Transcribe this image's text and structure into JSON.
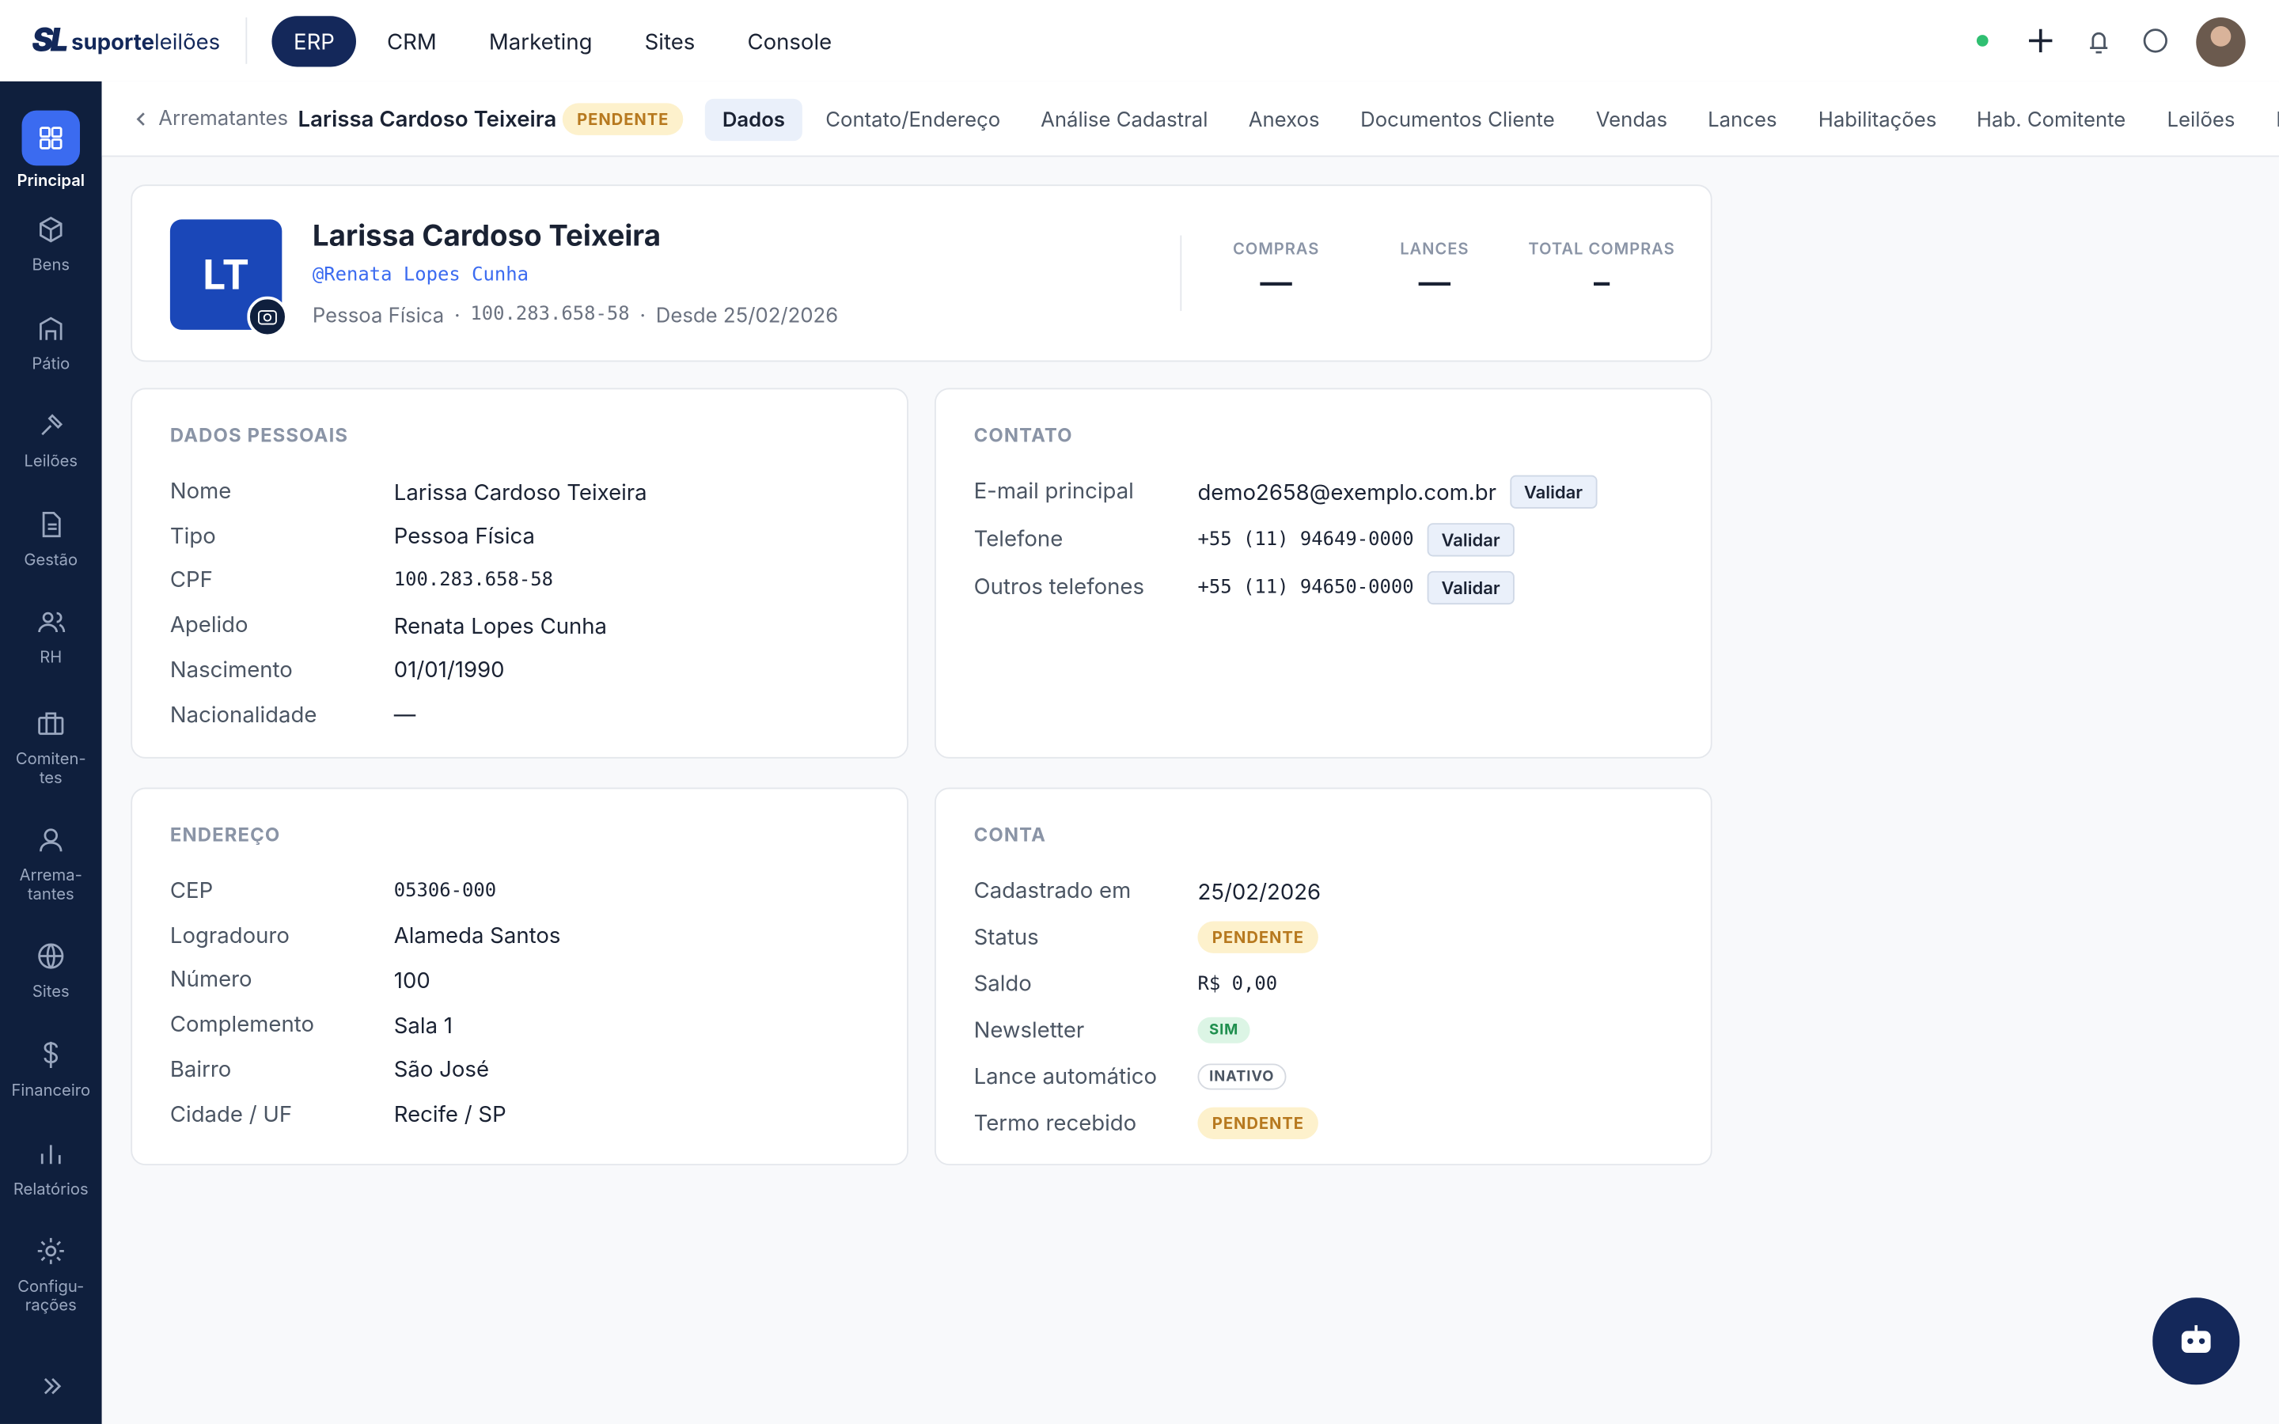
{
  "brand": {
    "mark": "SL",
    "name_bold": "suporte",
    "name_light": "leilões"
  },
  "topnav": {
    "items": [
      "ERP",
      "CRM",
      "Marketing",
      "Sites",
      "Console"
    ],
    "active": 0
  },
  "sidebar": {
    "items": [
      "Principal",
      "Bens",
      "Pátio",
      "Leilões",
      "Gestão",
      "RH",
      "Comiten-\ntes",
      "Arrema-\ntantes",
      "Sites",
      "Financeiro",
      "Relatórios",
      "Configu-\nrações"
    ],
    "active": 0
  },
  "breadcrumb": {
    "parent": "Arrematantes",
    "current": "Larissa Cardoso Teixeira",
    "status": "PENDENTE"
  },
  "tabs": {
    "items": [
      "Dados",
      "Contato/Endereço",
      "Análise Cadastral",
      "Anexos",
      "Documentos Cliente",
      "Vendas",
      "Lances",
      "Habilitações",
      "Hab. Comitente",
      "Leilões",
      "Financeiro"
    ],
    "active": 0
  },
  "profile": {
    "initials": "LT",
    "name": "Larissa Cardoso Teixeira",
    "handle": "@Renata Lopes Cunha",
    "meta": [
      "Pessoa Física",
      "100.283.658-58",
      "Desde 25/02/2026"
    ],
    "separator": "·",
    "stats": [
      {
        "label": "COMPRAS",
        "value": "—"
      },
      {
        "label": "LANCES",
        "value": "—"
      },
      {
        "label": "TOTAL COMPRAS",
        "value": "–"
      }
    ]
  },
  "sections": [
    {
      "title": "DADOS PESSOAIS",
      "rows": [
        {
          "label": "Nome",
          "value": "Larissa Cardoso Teixeira"
        },
        {
          "label": "Tipo",
          "value": "Pessoa Física"
        },
        {
          "label": "CPF",
          "value": "100.283.658-58",
          "style": "mono"
        },
        {
          "label": "Apelido",
          "value": "Renata Lopes Cunha"
        },
        {
          "label": "Nascimento",
          "value": "01/01/1990"
        },
        {
          "label": "Nacionalidade",
          "value": "—"
        }
      ]
    },
    {
      "title": "CONTATO",
      "rows": [
        {
          "label": "E-mail principal",
          "value": "demo2658@exemplo.com.br",
          "action": "Validar"
        },
        {
          "label": "Telefone",
          "value": "+55 (11) 94649-0000",
          "style": "mono",
          "action": "Validar"
        },
        {
          "label": "Outros telefones",
          "value": "+55 (11) 94650-0000",
          "style": "mono",
          "action": "Validar"
        }
      ]
    },
    {
      "title": "ENDEREÇO",
      "rows": [
        {
          "label": "CEP",
          "value": "05306-000",
          "style": "mono"
        },
        {
          "label": "Logradouro",
          "value": "Alameda Santos"
        },
        {
          "label": "Número",
          "value": "100"
        },
        {
          "label": "Complemento",
          "value": "Sala 1"
        },
        {
          "label": "Bairro",
          "value": "São José"
        },
        {
          "label": "Cidade / UF",
          "value": "Recife / SP"
        }
      ]
    },
    {
      "title": "CONTA",
      "rows": [
        {
          "label": "Cadastrado em",
          "value": "25/02/2026"
        },
        {
          "label": "Status",
          "value": "PENDENTE",
          "style": "badge-warning"
        },
        {
          "label": "Saldo",
          "value": "R$ 0,00",
          "style": "mono"
        },
        {
          "label": "Newsletter",
          "value": "SIM",
          "style": "badge-success"
        },
        {
          "label": "Lance automático",
          "value": "INATIVO",
          "style": "badge-neutral"
        },
        {
          "label": "Termo recebido",
          "value": "PENDENTE",
          "style": "badge-warning"
        }
      ]
    }
  ]
}
